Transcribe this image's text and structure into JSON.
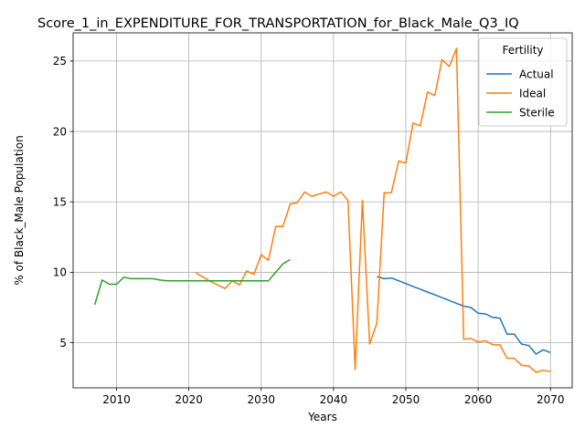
{
  "chart_data": {
    "type": "line",
    "title": "Score_1_in_EXPENDITURE_FOR_TRANSPORTATION_for_Black_Male_Q3_IQ",
    "xlabel": "Years",
    "ylabel": "% of Black_Male Population",
    "xlim": [
      2004,
      2073
    ],
    "ylim": [
      1.8,
      27
    ],
    "xticks": [
      2010,
      2020,
      2030,
      2040,
      2050,
      2060,
      2070
    ],
    "yticks": [
      5,
      10,
      15,
      20,
      25
    ],
    "grid": true,
    "legend": {
      "title": "Fertility",
      "position": "top-right"
    },
    "series": [
      {
        "name": "Actual",
        "color": "#1f77b4",
        "x": [
          2046,
          2047,
          2048,
          2049,
          2050,
          2051,
          2052,
          2053,
          2054,
          2055,
          2056,
          2057,
          2058,
          2059,
          2060,
          2061,
          2062,
          2063,
          2064,
          2065,
          2066,
          2067,
          2068,
          2069,
          2070
        ],
        "y": [
          9.7,
          9.55,
          9.6,
          9.4,
          9.2,
          9.0,
          8.8,
          8.6,
          8.4,
          8.2,
          8.0,
          7.8,
          7.6,
          7.5,
          7.1,
          7.05,
          6.8,
          6.75,
          5.6,
          5.6,
          4.9,
          4.8,
          4.2,
          4.5,
          4.3
        ]
      },
      {
        "name": "Ideal",
        "color": "#ff7f0e",
        "x": [
          2021,
          2022,
          2023,
          2024,
          2025,
          2026,
          2027,
          2028,
          2029,
          2030,
          2031,
          2032,
          2033,
          2034,
          2035,
          2036,
          2037,
          2038,
          2039,
          2040,
          2041,
          2042,
          2043,
          2044,
          2045,
          2046,
          2047,
          2048,
          2049,
          2050,
          2051,
          2052,
          2053,
          2054,
          2055,
          2056,
          2057,
          2058,
          2059,
          2060,
          2061,
          2062,
          2063,
          2064,
          2065,
          2066,
          2067,
          2068,
          2069,
          2070
        ],
        "y": [
          9.95,
          9.65,
          9.35,
          9.1,
          8.85,
          9.4,
          9.1,
          10.1,
          9.85,
          11.25,
          10.85,
          13.25,
          13.25,
          14.85,
          14.95,
          15.7,
          15.4,
          15.55,
          15.7,
          15.4,
          15.7,
          15.1,
          3.1,
          15.1,
          4.9,
          6.4,
          15.65,
          15.65,
          17.9,
          17.75,
          20.6,
          20.4,
          22.8,
          22.55,
          25.1,
          24.6,
          25.9,
          5.25,
          5.3,
          5.05,
          5.15,
          4.85,
          4.85,
          3.9,
          3.9,
          3.4,
          3.35,
          2.9,
          3.05,
          2.95
        ]
      },
      {
        "name": "Sterile",
        "color": "#2ca02c",
        "x": [
          2007,
          2008,
          2009,
          2010,
          2011,
          2012,
          2013,
          2014,
          2015,
          2016,
          2017,
          2018,
          2019,
          2020,
          2021,
          2022,
          2023,
          2024,
          2025,
          2026,
          2027,
          2028,
          2029,
          2030,
          2031,
          2032,
          2033,
          2034
        ],
        "y": [
          7.7,
          9.45,
          9.15,
          9.15,
          9.65,
          9.55,
          9.55,
          9.55,
          9.55,
          9.45,
          9.4,
          9.4,
          9.4,
          9.4,
          9.4,
          9.4,
          9.4,
          9.4,
          9.4,
          9.4,
          9.4,
          9.4,
          9.4,
          9.4,
          9.4,
          10.0,
          10.6,
          10.9
        ]
      }
    ]
  }
}
